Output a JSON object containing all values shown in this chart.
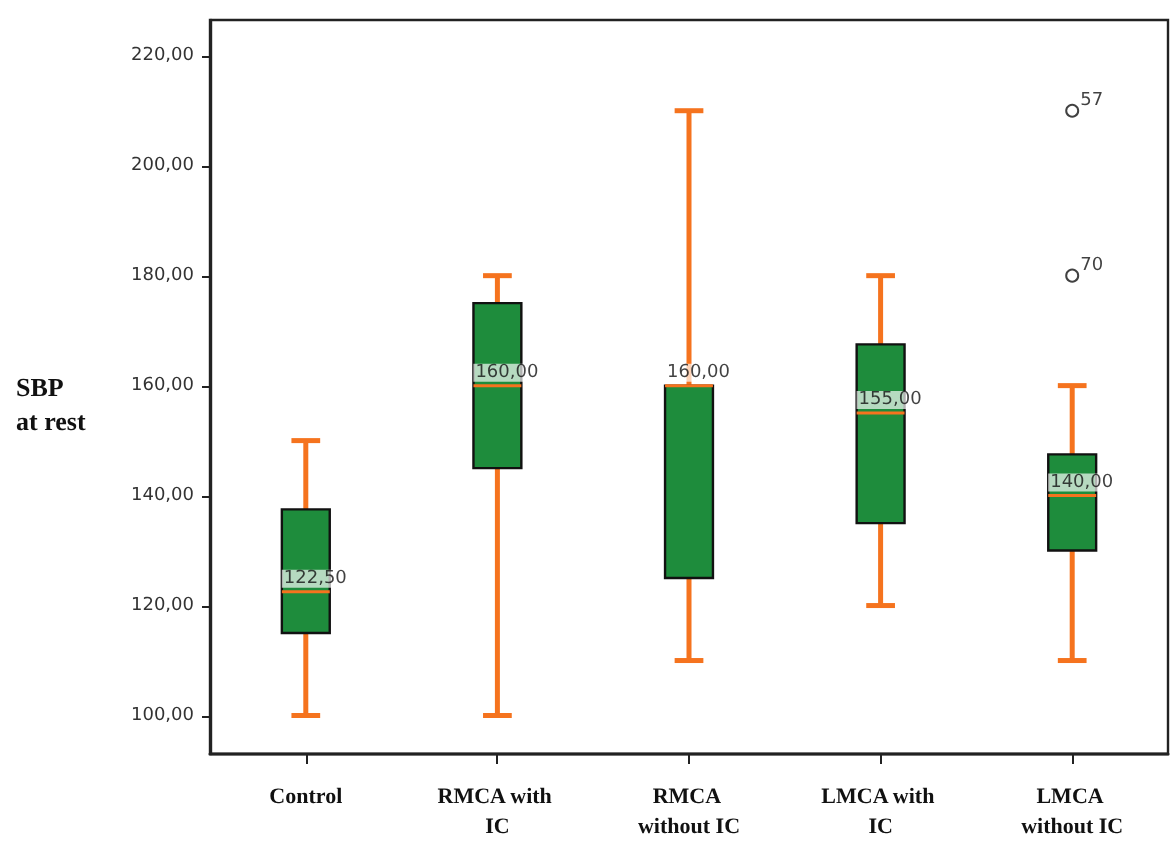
{
  "chart_data": {
    "type": "box",
    "ylabel": "SBP\nat rest",
    "categories": [
      "Control",
      "RMCA with IC",
      "RMCA without IC",
      "LMCA with IC",
      "LMCA without IC"
    ],
    "series": [
      {
        "color": "#1e8c3c",
        "boxes": [
          {
            "low": 100,
            "q1": 115,
            "median": 122.5,
            "q3": 137.5,
            "high": 150
          },
          {
            "low": 100,
            "q1": 145,
            "median": 160,
            "q3": 175,
            "high": 180
          },
          {
            "low": 110,
            "q1": 125,
            "median": 160,
            "q3": 160,
            "high": 210
          },
          {
            "low": 120,
            "q1": 135,
            "median": 155,
            "q3": 167.5,
            "high": 180
          },
          {
            "low": 110,
            "q1": 130,
            "median": 140,
            "q3": 147.5,
            "high": 160,
            "outliers": [
              210,
              180
            ]
          }
        ]
      }
    ],
    "ylim": [
      93,
      226.5
    ],
    "yticks": [
      {
        "value": 100,
        "label": "100,00"
      },
      {
        "value": 120,
        "label": "120,00"
      },
      {
        "value": 140,
        "label": "140,00"
      },
      {
        "value": 160,
        "label": "160,00"
      },
      {
        "value": 180,
        "label": "180,00"
      },
      {
        "value": 200,
        "label": "200,00"
      },
      {
        "value": 220,
        "label": "220,00"
      }
    ],
    "annotations": [
      {
        "text": "122,50",
        "x": "Control",
        "y": 122.5
      },
      {
        "text": "160,00",
        "x": "RMCA with IC",
        "y": 160
      },
      {
        "text": "160,00",
        "x": "RMCA without IC",
        "y": 160
      },
      {
        "text": "155,00",
        "x": "LMCA with IC",
        "y": 155
      },
      {
        "text": "140,00",
        "x": "LMCA without IC",
        "y": 140
      },
      "57",
      "70"
    ]
  }
}
